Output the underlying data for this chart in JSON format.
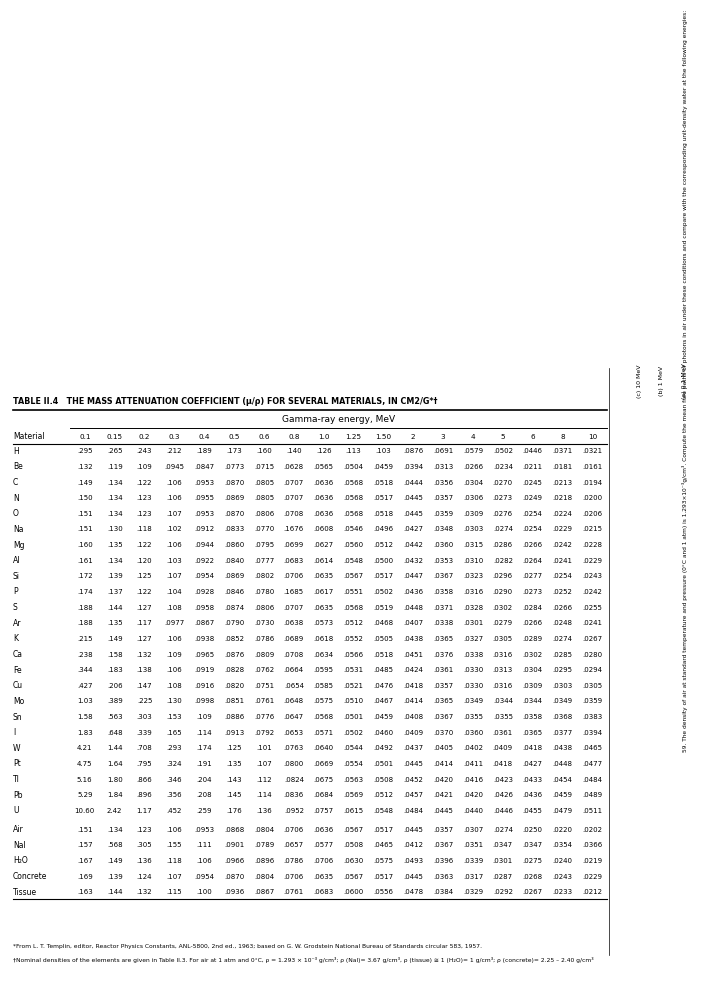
{
  "title": "TABLE II.4   THE MASS ATTENUATION COEFFICIENT (μ/ρ) FOR SEVERAL MATERIALS, IN CM2/G*†",
  "subtitle": "Gamma-ray energy, MeV",
  "columns": [
    "Material",
    "0.1",
    "0.15",
    "0.2",
    "0.3",
    "0.4",
    "0.5",
    "0.6",
    "0.8",
    "1.0",
    "1.25",
    "1.50",
    "2",
    "3",
    "4",
    "5",
    "6",
    "8",
    "10"
  ],
  "rows": [
    [
      "H",
      ".295",
      ".265",
      ".243",
      ".212",
      ".189",
      ".173",
      ".160",
      ".140",
      ".126",
      ".113",
      ".103",
      ".0876",
      ".0691",
      ".0579",
      ".0502",
      ".0446",
      ".0371",
      ".0321"
    ],
    [
      "Be",
      ".132",
      ".119",
      ".109",
      ".0945",
      ".0847",
      ".0773",
      ".0715",
      ".0628",
      ".0565",
      ".0504",
      ".0459",
      ".0394",
      ".0313",
      ".0266",
      ".0234",
      ".0211",
      ".0181",
      ".0161"
    ],
    [
      "C",
      ".149",
      ".134",
      ".122",
      ".106",
      ".0953",
      ".0870",
      ".0805",
      ".0707",
      ".0636",
      ".0568",
      ".0518",
      ".0444",
      ".0356",
      ".0304",
      ".0270",
      ".0245",
      ".0213",
      ".0194"
    ],
    [
      "N",
      ".150",
      ".134",
      ".123",
      ".106",
      ".0955",
      ".0869",
      ".0805",
      ".0707",
      ".0636",
      ".0568",
      ".0517",
      ".0445",
      ".0357",
      ".0306",
      ".0273",
      ".0249",
      ".0218",
      ".0200"
    ],
    [
      "O",
      ".151",
      ".134",
      ".123",
      ".107",
      ".0953",
      ".0870",
      ".0806",
      ".0708",
      ".0636",
      ".0568",
      ".0518",
      ".0445",
      ".0359",
      ".0309",
      ".0276",
      ".0254",
      ".0224",
      ".0206"
    ],
    [
      "Na",
      ".151",
      ".130",
      ".118",
      ".102",
      ".0912",
      ".0833",
      ".0770",
      ".1676",
      ".0608",
      ".0546",
      ".0496",
      ".0427",
      ".0348",
      ".0303",
      ".0274",
      ".0254",
      ".0229",
      ".0215"
    ],
    [
      "Mg",
      ".160",
      ".135",
      ".122",
      ".106",
      ".0944",
      ".0860",
      ".0795",
      ".0699",
      ".0627",
      ".0560",
      ".0512",
      ".0442",
      ".0360",
      ".0315",
      ".0286",
      ".0266",
      ".0242",
      ".0228"
    ],
    [
      "Al",
      ".161",
      ".134",
      ".120",
      ".103",
      ".0922",
      ".0840",
      ".0777",
      ".0683",
      ".0614",
      ".0548",
      ".0500",
      ".0432",
      ".0353",
      ".0310",
      ".0282",
      ".0264",
      ".0241",
      ".0229"
    ],
    [
      "Si",
      ".172",
      ".139",
      ".125",
      ".107",
      ".0954",
      ".0869",
      ".0802",
      ".0706",
      ".0635",
      ".0567",
      ".0517",
      ".0447",
      ".0367",
      ".0323",
      ".0296",
      ".0277",
      ".0254",
      ".0243"
    ],
    [
      "P",
      ".174",
      ".137",
      ".122",
      ".104",
      ".0928",
      ".0846",
      ".0780",
      ".1685",
      ".0617",
      ".0551",
      ".0502",
      ".0436",
      ".0358",
      ".0316",
      ".0290",
      ".0273",
      ".0252",
      ".0242"
    ],
    [
      "S",
      ".188",
      ".144",
      ".127",
      ".108",
      ".0958",
      ".0874",
      ".0806",
      ".0707",
      ".0635",
      ".0568",
      ".0519",
      ".0448",
      ".0371",
      ".0328",
      ".0302",
      ".0284",
      ".0266",
      ".0255"
    ],
    [
      "Ar",
      ".188",
      ".135",
      ".117",
      ".0977",
      ".0867",
      ".0790",
      ".0730",
      ".0638",
      ".0573",
      ".0512",
      ".0468",
      ".0407",
      ".0338",
      ".0301",
      ".0279",
      ".0266",
      ".0248",
      ".0241"
    ],
    [
      "K",
      ".215",
      ".149",
      ".127",
      ".106",
      ".0938",
      ".0852",
      ".0786",
      ".0689",
      ".0618",
      ".0552",
      ".0505",
      ".0438",
      ".0365",
      ".0327",
      ".0305",
      ".0289",
      ".0274",
      ".0267"
    ],
    [
      "Ca",
      ".238",
      ".158",
      ".132",
      ".109",
      ".0965",
      ".0876",
      ".0809",
      ".0708",
      ".0634",
      ".0566",
      ".0518",
      ".0451",
      ".0376",
      ".0338",
      ".0316",
      ".0302",
      ".0285",
      ".0280"
    ],
    [
      "Fe",
      ".344",
      ".183",
      ".138",
      ".106",
      ".0919",
      ".0828",
      ".0762",
      ".0664",
      ".0595",
      ".0531",
      ".0485",
      ".0424",
      ".0361",
      ".0330",
      ".0313",
      ".0304",
      ".0295",
      ".0294"
    ],
    [
      "Cu",
      ".427",
      ".206",
      ".147",
      ".108",
      ".0916",
      ".0820",
      ".0751",
      ".0654",
      ".0585",
      ".0521",
      ".0476",
      ".0418",
      ".0357",
      ".0330",
      ".0316",
      ".0309",
      ".0303",
      ".0305"
    ],
    [
      "Mo",
      "1.03",
      ".389",
      ".225",
      ".130",
      ".0998",
      ".0851",
      ".0761",
      ".0648",
      ".0575",
      ".0510",
      ".0467",
      ".0414",
      ".0365",
      ".0349",
      ".0344",
      ".0344",
      ".0349",
      ".0359"
    ],
    [
      "Sn",
      "1.58",
      ".563",
      ".303",
      ".153",
      ".109",
      ".0886",
      ".0776",
      ".0647",
      ".0568",
      ".0501",
      ".0459",
      ".0408",
      ".0367",
      ".0355",
      ".0355",
      ".0358",
      ".0368",
      ".0383"
    ],
    [
      "I",
      "1.83",
      ".648",
      ".339",
      ".165",
      ".114",
      ".0913",
      ".0792",
      ".0653",
      ".0571",
      ".0502",
      ".0460",
      ".0409",
      ".0370",
      ".0360",
      ".0361",
      ".0365",
      ".0377",
      ".0394"
    ],
    [
      "W",
      "4.21",
      "1.44",
      ".708",
      ".293",
      ".174",
      ".125",
      ".101",
      ".0763",
      ".0640",
      ".0544",
      ".0492",
      ".0437",
      ".0405",
      ".0402",
      ".0409",
      ".0418",
      ".0438",
      ".0465"
    ],
    [
      "Pt",
      "4.75",
      "1.64",
      ".795",
      ".324",
      ".191",
      ".135",
      ".107",
      ".0800",
      ".0669",
      ".0554",
      ".0501",
      ".0445",
      ".0414",
      ".0411",
      ".0418",
      ".0427",
      ".0448",
      ".0477"
    ],
    [
      "Tl",
      "5.16",
      "1.80",
      ".866",
      ".346",
      ".204",
      ".143",
      ".112",
      ".0824",
      ".0675",
      ".0563",
      ".0508",
      ".0452",
      ".0420",
      ".0416",
      ".0423",
      ".0433",
      ".0454",
      ".0484"
    ],
    [
      "Pb",
      "5.29",
      "1.84",
      ".896",
      ".356",
      ".208",
      ".145",
      ".114",
      ".0836",
      ".0684",
      ".0569",
      ".0512",
      ".0457",
      ".0421",
      ".0420",
      ".0426",
      ".0436",
      ".0459",
      ".0489"
    ],
    [
      "U",
      "10.60",
      "2.42",
      "1.17",
      ".452",
      ".259",
      ".176",
      ".136",
      ".0952",
      ".0757",
      ".0615",
      ".0548",
      ".0484",
      ".0445",
      ".0440",
      ".0446",
      ".0455",
      ".0479",
      ".0511"
    ],
    [
      "Air",
      ".151",
      ".134",
      ".123",
      ".106",
      ".0953",
      ".0868",
      ".0804",
      ".0706",
      ".0636",
      ".0567",
      ".0517",
      ".0445",
      ".0357",
      ".0307",
      ".0274",
      ".0250",
      ".0220",
      ".0202"
    ],
    [
      "NaI",
      ".157",
      ".568",
      ".305",
      ".155",
      ".111",
      ".0901",
      ".0789",
      ".0657",
      ".0577",
      ".0508",
      ".0465",
      ".0412",
      ".0367",
      ".0351",
      ".0347",
      ".0347",
      ".0354",
      ".0366"
    ],
    [
      "H₂O",
      ".167",
      ".149",
      ".136",
      ".118",
      ".106",
      ".0966",
      ".0896",
      ".0786",
      ".0706",
      ".0630",
      ".0575",
      ".0493",
      ".0396",
      ".0339",
      ".0301",
      ".0275",
      ".0240",
      ".0219"
    ],
    [
      "Concrete",
      ".169",
      ".139",
      ".124",
      ".107",
      ".0954",
      ".0870",
      ".0804",
      ".0706",
      ".0635",
      ".0567",
      ".0517",
      ".0445",
      ".0363",
      ".0317",
      ".0287",
      ".0268",
      ".0243",
      ".0229"
    ],
    [
      "Tissue",
      ".163",
      ".144",
      ".132",
      ".115",
      ".100",
      ".0936",
      ".0867",
      ".0761",
      ".0683",
      ".0600",
      ".0556",
      ".0478",
      ".0384",
      ".0329",
      ".0292",
      ".0267",
      ".0233",
      ".0212"
    ]
  ],
  "footnote1": "*From L. T. Templin, editor, Reactor Physics Constants, ANL-5800, 2nd ed., 1963; based on G. W. Grodstein National Bureau of Standards circular 583, 1957.",
  "footnote2": "†Nominal densities of the elements are given in Table II.3. For air at 1 atm and 0°C, ρ = 1.293 × 10⁻³ g/cm³; ρ (NaI)= 3.67 g/cm³, ρ (tissue) ≅ 1 (H₂O)= 1 g/cm³; ρ (concrete)= 2.25 – 2.40 g/cm³",
  "sidebar_main": "59. The density of air at standard temperature and pressure (0°C and 1 atm) is 1.293×10⁻³g/cm³. Compute the mean free paths of photons in air under these conditions and compare with the corresponding unit-density water at the following energies:",
  "sidebar_items": [
    "(a) 0.1 MeV",
    "(b) 1 MeV",
    "(c) 10 MeV"
  ]
}
